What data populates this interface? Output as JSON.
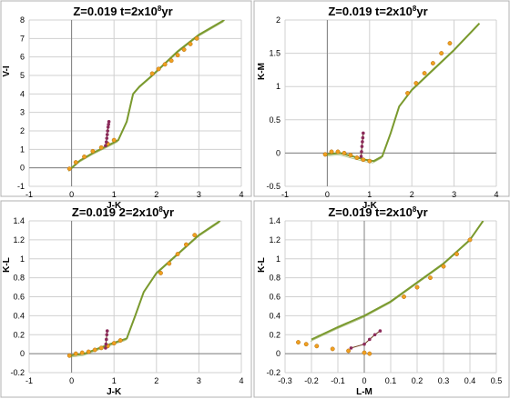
{
  "colors": {
    "green": "#7a9a2e",
    "orange": "#f0a020",
    "orange_edge": "#b06a10",
    "purple": "#8b2a5a",
    "brown": "#6b3a1a"
  },
  "chart_data": [
    {
      "type": "line",
      "title_main": "Z=0.019   t=2x10",
      "title_sup": "8",
      "title_unit": "yr",
      "xlabel": "J-K",
      "ylabel": "V-I",
      "xlim": [
        -1,
        4
      ],
      "ylim": [
        -1,
        8
      ],
      "xticks": [
        -1,
        0,
        1,
        2,
        3,
        4
      ],
      "yticks": [
        -1,
        0,
        1,
        2,
        3,
        4,
        5,
        6,
        7,
        8
      ],
      "grid": true,
      "series": [
        {
          "style": "green-line",
          "x": [
            -0.05,
            0.2,
            0.5,
            0.85,
            1.1,
            1.3,
            1.45,
            1.6,
            1.9,
            2.5,
            3.0,
            3.6
          ],
          "y": [
            -0.1,
            0.4,
            0.8,
            1.2,
            1.5,
            2.5,
            4.0,
            4.4,
            5.0,
            6.3,
            7.2,
            8.0
          ]
        },
        {
          "style": "orange-markers",
          "x": [
            -0.05,
            0.1,
            0.3,
            0.5,
            0.7,
            0.85,
            1.0,
            1.9,
            2.05,
            2.2,
            2.35,
            2.5,
            2.65,
            2.8,
            2.95
          ],
          "y": [
            -0.05,
            0.3,
            0.6,
            0.9,
            1.1,
            1.3,
            1.5,
            5.1,
            5.35,
            5.6,
            5.8,
            6.1,
            6.4,
            6.7,
            7.0
          ]
        },
        {
          "style": "purple-markers",
          "x": [
            0.8,
            0.82,
            0.83,
            0.84,
            0.85,
            0.86,
            0.87,
            0.88
          ],
          "y": [
            1.2,
            1.4,
            1.6,
            1.8,
            2.0,
            2.2,
            2.35,
            2.5
          ]
        }
      ]
    },
    {
      "type": "line",
      "title_main": "Z=0.019   t=2x10",
      "title_sup": "8",
      "title_unit": "yr",
      "xlabel": "J-K",
      "ylabel": "K-M",
      "xlim": [
        -1,
        4
      ],
      "ylim": [
        -0.5,
        2
      ],
      "xticks": [
        -1,
        0,
        1,
        2,
        3,
        4
      ],
      "yticks": [
        -0.5,
        0,
        0.5,
        1,
        1.5,
        2
      ],
      "grid": true,
      "series": [
        {
          "style": "green-line",
          "x": [
            -0.05,
            0.3,
            0.6,
            0.9,
            1.1,
            1.3,
            1.5,
            1.7,
            2.0,
            2.5,
            3.0,
            3.6
          ],
          "y": [
            -0.02,
            0.0,
            -0.05,
            -0.1,
            -0.12,
            -0.05,
            0.3,
            0.7,
            0.95,
            1.25,
            1.55,
            1.95
          ]
        },
        {
          "style": "orange-markers",
          "x": [
            -0.05,
            0.1,
            0.25,
            0.4,
            0.55,
            0.7,
            0.85,
            1.0,
            1.9,
            2.1,
            2.3,
            2.5,
            2.7,
            2.9
          ],
          "y": [
            -0.02,
            0.02,
            0.02,
            0.0,
            -0.03,
            -0.07,
            -0.1,
            -0.12,
            0.9,
            1.05,
            1.2,
            1.35,
            1.5,
            1.65
          ]
        },
        {
          "style": "purple-markers",
          "x": [
            0.8,
            0.81,
            0.82,
            0.83,
            0.84,
            0.85
          ],
          "y": [
            -0.05,
            0.02,
            0.1,
            0.17,
            0.23,
            0.3
          ]
        }
      ]
    },
    {
      "type": "line",
      "title_main": "Z=0.019   2=2x10",
      "title_sup": "8",
      "title_unit": "yr",
      "xlabel": "J-K",
      "ylabel": "K-L",
      "xlim": [
        -1,
        4
      ],
      "ylim": [
        -0.2,
        1.4
      ],
      "xticks": [
        -1,
        0,
        1,
        2,
        3,
        4
      ],
      "yticks": [
        -0.2,
        0,
        0.2,
        0.4,
        0.6,
        0.8,
        1,
        1.2,
        1.4
      ],
      "grid": true,
      "series": [
        {
          "style": "green-line",
          "x": [
            -0.05,
            0.3,
            0.6,
            0.9,
            1.1,
            1.3,
            1.5,
            1.7,
            2.0,
            2.5,
            3.0,
            3.5
          ],
          "y": [
            -0.02,
            0.0,
            0.05,
            0.1,
            0.13,
            0.16,
            0.4,
            0.65,
            0.85,
            1.05,
            1.25,
            1.4
          ]
        },
        {
          "style": "orange-markers",
          "x": [
            -0.05,
            0.1,
            0.25,
            0.4,
            0.55,
            0.7,
            0.85,
            1.0,
            1.15,
            2.1,
            2.3,
            2.5,
            2.7,
            2.9
          ],
          "y": [
            -0.02,
            0.0,
            0.01,
            0.02,
            0.04,
            0.06,
            0.08,
            0.11,
            0.14,
            0.85,
            0.95,
            1.05,
            1.15,
            1.25
          ]
        },
        {
          "style": "purple-markers",
          "x": [
            0.8,
            0.81,
            0.82,
            0.83,
            0.84
          ],
          "y": [
            0.06,
            0.1,
            0.15,
            0.2,
            0.24
          ]
        }
      ]
    },
    {
      "type": "line",
      "title_main": "Z=0.019   t=2x10",
      "title_sup": "8",
      "title_unit": "yr",
      "xlabel": "L-M",
      "ylabel": "K-L",
      "xlim": [
        -0.3,
        0.5
      ],
      "ylim": [
        -0.2,
        1.4
      ],
      "xticks": [
        -0.3,
        -0.2,
        -0.1,
        0,
        0.1,
        0.2,
        0.3,
        0.4,
        0.5
      ],
      "yticks": [
        -0.2,
        0,
        0.2,
        0.4,
        0.6,
        0.8,
        1,
        1.2,
        1.4
      ],
      "grid": true,
      "series": [
        {
          "style": "green-line",
          "x": [
            -0.2,
            -0.1,
            0.0,
            0.1,
            0.2,
            0.3,
            0.4,
            0.45
          ],
          "y": [
            0.15,
            0.28,
            0.4,
            0.55,
            0.75,
            0.95,
            1.2,
            1.4
          ]
        },
        {
          "style": "orange-markers",
          "x": [
            -0.25,
            -0.22,
            -0.18,
            -0.12,
            -0.06,
            0.0,
            0.02,
            0.15,
            0.2,
            0.25,
            0.3,
            0.35,
            0.4
          ],
          "y": [
            0.12,
            0.1,
            0.08,
            0.05,
            0.03,
            0.01,
            0.0,
            0.6,
            0.7,
            0.8,
            0.92,
            1.05,
            1.2
          ]
        },
        {
          "style": "purple-markers",
          "x": [
            -0.05,
            0.0,
            0.02,
            0.04,
            0.06
          ],
          "y": [
            0.06,
            0.1,
            0.15,
            0.2,
            0.24
          ]
        }
      ]
    }
  ]
}
